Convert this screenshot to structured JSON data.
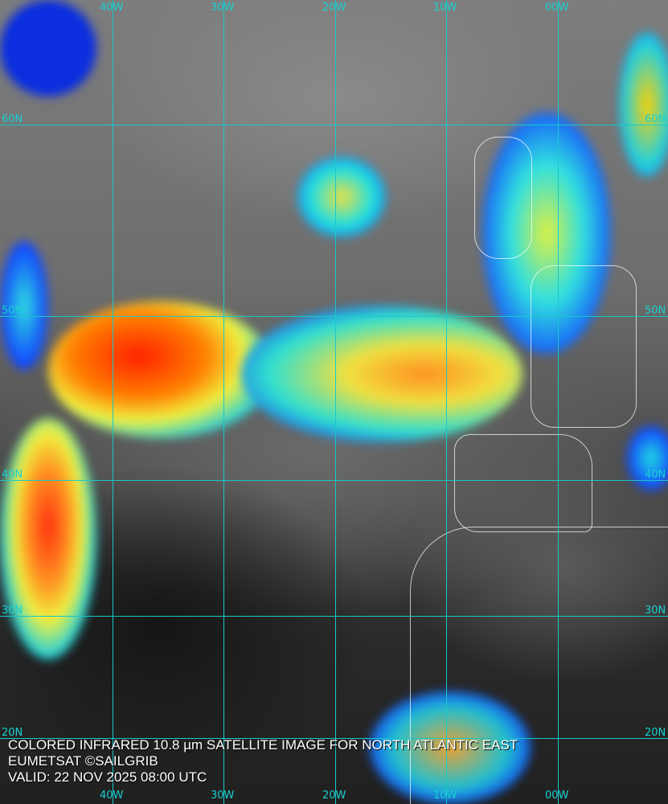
{
  "caption": {
    "line1": "COLORED INFRARED 10.8 µm SATELLITE IMAGE FOR NORTH ATLANTIC EAST",
    "line2": "EUMETSAT ©SAILGRIB",
    "line3": "VALID:  22 NOV 2025 08:00 UTC"
  },
  "longitudes": [
    "40W",
    "30W",
    "20W",
    "10W",
    "00W"
  ],
  "latitudes": [
    "60N",
    "50N",
    "40N",
    "30N",
    "20N"
  ],
  "colors": {
    "grid": "#19c8c8",
    "cold_top": "#ff2000",
    "mid": "#ffe000",
    "low": "#0020ff",
    "coastline": "#ffffff"
  }
}
